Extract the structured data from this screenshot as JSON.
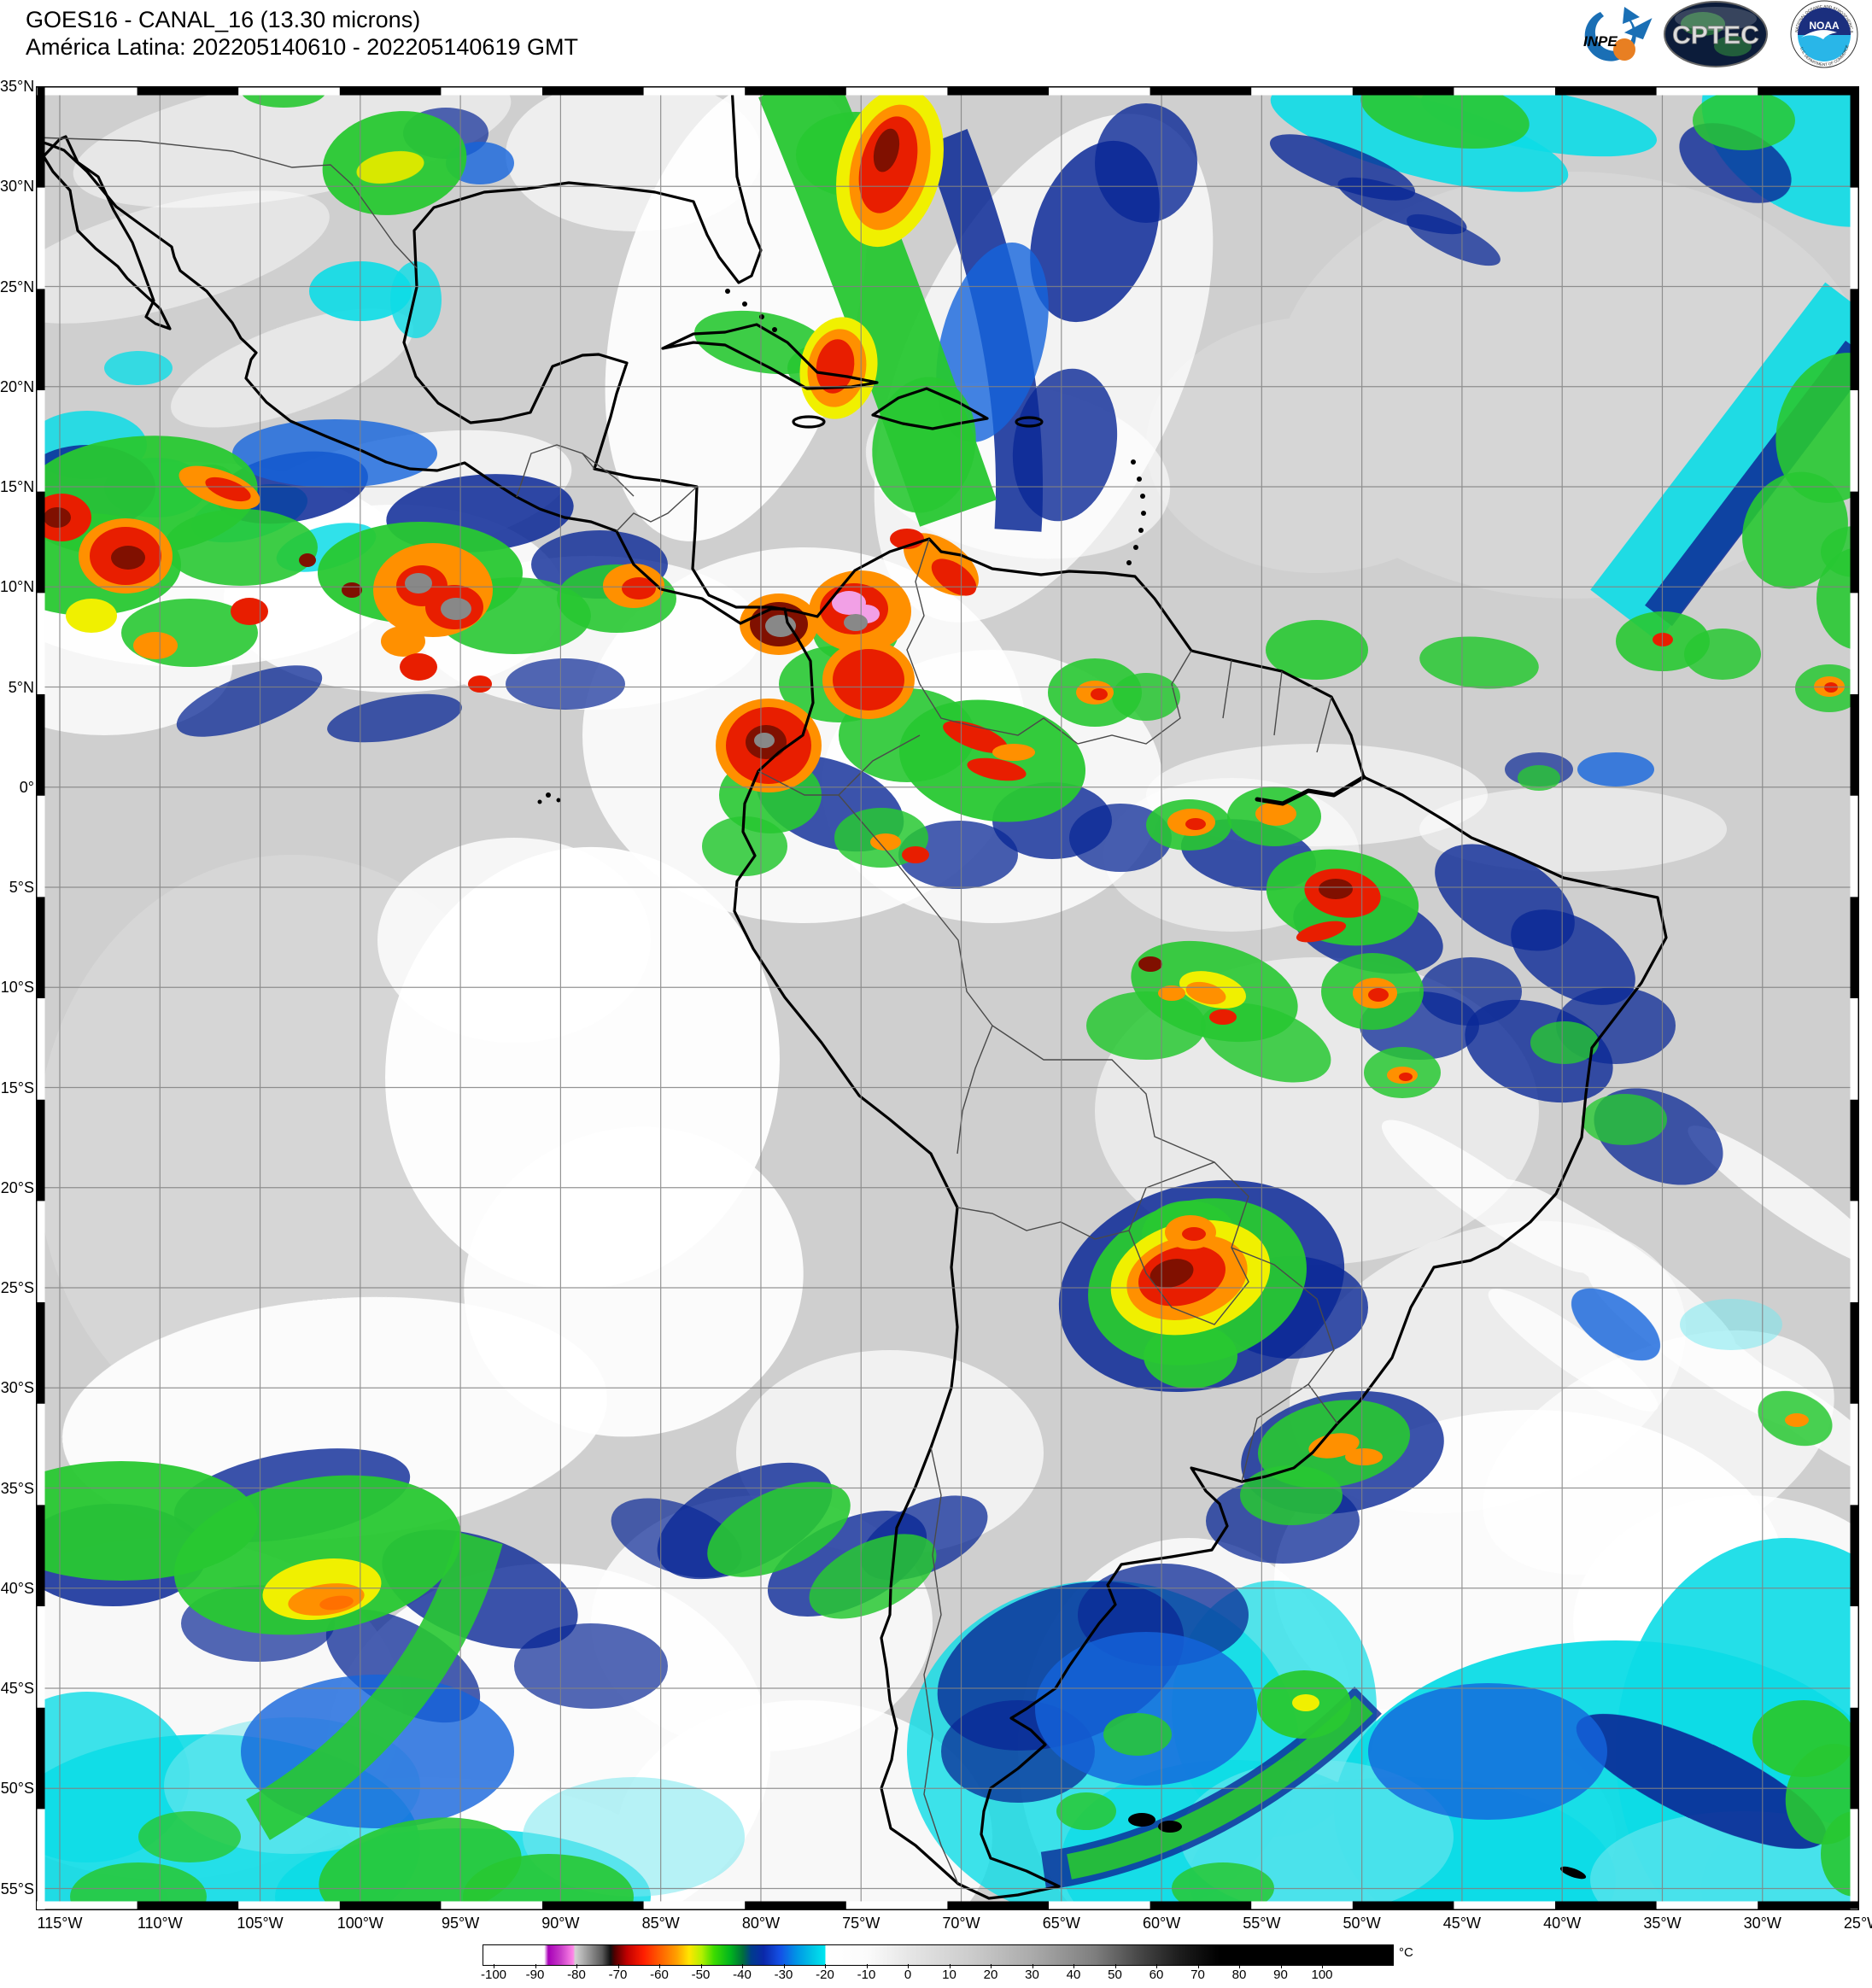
{
  "header": {
    "line1": "GOES16 - CANAL_16 (13.30 microns)",
    "line2": "América Latina: 202205140610 - 202205140619 GMT"
  },
  "logos": {
    "inpe_label": "INPE",
    "cptec_label": "CPTEC",
    "noaa_label": "NOAA",
    "noaa_ring_top": "NATIONAL OCEANIC AND ATMOSPHERIC ADMINISTRATION",
    "noaa_ring_bottom": "U.S. DEPARTMENT OF COMMERCE"
  },
  "map": {
    "lat_labels": [
      "35°N",
      "30°N",
      "25°N",
      "20°N",
      "15°N",
      "10°N",
      "5°N",
      "0°",
      "5°S",
      "10°S",
      "15°S",
      "20°S",
      "25°S",
      "30°S",
      "35°S",
      "40°S",
      "45°S",
      "50°S",
      "55°S"
    ],
    "lon_labels": [
      "115°W",
      "110°W",
      "105°W",
      "100°W",
      "95°W",
      "90°W",
      "85°W",
      "80°W",
      "75°W",
      "70°W",
      "65°W",
      "60°W",
      "55°W",
      "50°W",
      "45°W",
      "40°W",
      "35°W",
      "30°W",
      "25°W"
    ]
  },
  "colorbar": {
    "unit": "°C",
    "min": -100,
    "max": 100,
    "ticks": [
      "-100",
      "-90",
      "-80",
      "-70",
      "-60",
      "-50",
      "-40",
      "-30",
      "-20",
      "-10",
      "0",
      "10",
      "20",
      "30",
      "40",
      "50",
      "60",
      "70",
      "80",
      "90",
      "100"
    ],
    "stops": [
      {
        "t": -100,
        "c": "#ffffff"
      },
      {
        "t": -88,
        "c": "#ffffff"
      },
      {
        "t": -87,
        "c": "#a800b8"
      },
      {
        "t": -84,
        "c": "#c83cc8"
      },
      {
        "t": -81,
        "c": "#ff86e8"
      },
      {
        "t": -80.5,
        "c": "#d2d2d2"
      },
      {
        "t": -74,
        "c": "#5a5a5a"
      },
      {
        "t": -72,
        "c": "#101010"
      },
      {
        "t": -71,
        "c": "#500000"
      },
      {
        "t": -68,
        "c": "#c00000"
      },
      {
        "t": -64,
        "c": "#ff1e00"
      },
      {
        "t": -60,
        "c": "#ff6000"
      },
      {
        "t": -56,
        "c": "#ffa000"
      },
      {
        "t": -53,
        "c": "#ffe600"
      },
      {
        "t": -50,
        "c": "#b4f000"
      },
      {
        "t": -47,
        "c": "#3cdc00"
      },
      {
        "t": -43,
        "c": "#00b41e"
      },
      {
        "t": -40,
        "c": "#006e3c"
      },
      {
        "t": -38,
        "c": "#003c8c"
      },
      {
        "t": -35,
        "c": "#0a28aa"
      },
      {
        "t": -31,
        "c": "#1450e6"
      },
      {
        "t": -27,
        "c": "#0096e6"
      },
      {
        "t": -23,
        "c": "#00c8e6"
      },
      {
        "t": -20.2,
        "c": "#00e6f0"
      },
      {
        "t": -20,
        "c": "#ffffff"
      },
      {
        "t": -10,
        "c": "#fbfbfb"
      },
      {
        "t": 0,
        "c": "#e6e6e6"
      },
      {
        "t": 15,
        "c": "#cccccc"
      },
      {
        "t": 30,
        "c": "#aaaaaa"
      },
      {
        "t": 45,
        "c": "#7e7e7e"
      },
      {
        "t": 55,
        "c": "#4a4a4a"
      },
      {
        "t": 65,
        "c": "#1e1e1e"
      },
      {
        "t": 75,
        "c": "#000000"
      },
      {
        "t": 100,
        "c": "#000000"
      }
    ]
  }
}
